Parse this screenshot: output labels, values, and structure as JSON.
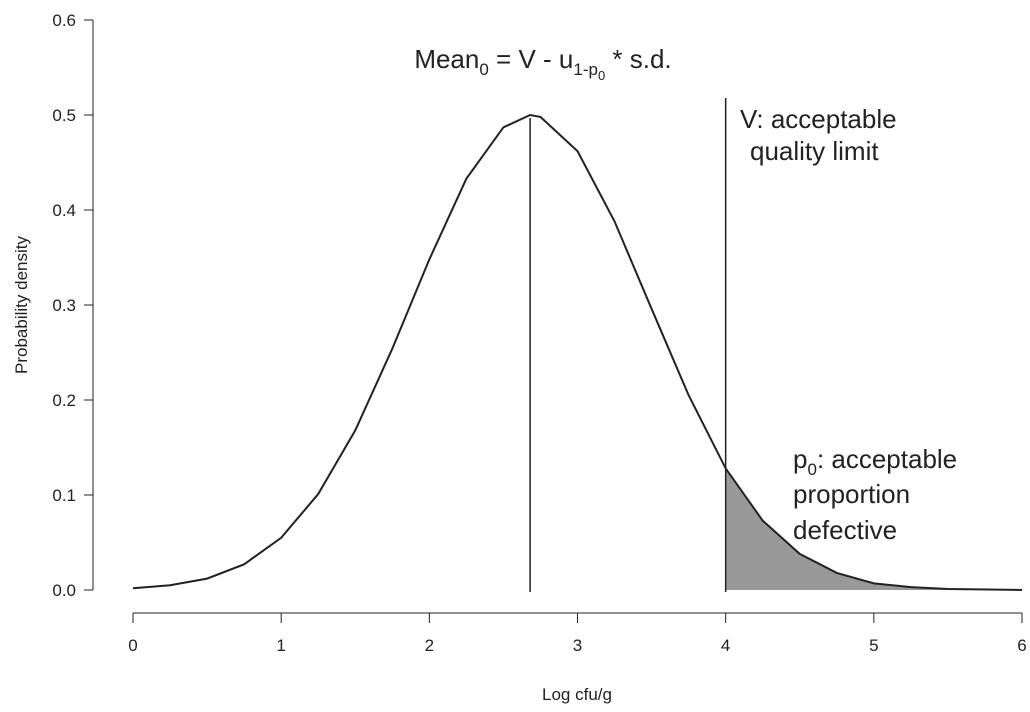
{
  "chart_data": {
    "type": "line",
    "title": [
      "Mean",
      "0",
      " = V - u",
      "1-p",
      "0",
      " * s.d."
    ],
    "xlabel": "Log cfu/g",
    "ylabel": "Probability density",
    "xlim": [
      0,
      6
    ],
    "xticks": [
      0,
      1,
      2,
      3,
      4,
      5,
      6
    ],
    "ylim": [
      0,
      0.6
    ],
    "yticks": [
      {
        "value": 0,
        "label": "0.0"
      },
      0.1,
      0.2,
      0.3,
      0.4,
      0.5,
      0.6
    ],
    "series": [
      {
        "color": "#222222",
        "x": [
          0,
          0.25,
          0.5,
          0.75,
          1,
          1.25,
          1.5,
          1.75,
          2,
          2.25,
          2.5,
          2.68,
          2.75,
          3,
          3.25,
          3.5,
          3.75,
          4,
          4.25,
          4.5,
          4.75,
          5,
          5.25,
          5.5,
          6
        ],
        "values": [
          0.0018,
          0.005,
          0.012,
          0.027,
          0.055,
          0.101,
          0.168,
          0.254,
          0.348,
          0.433,
          0.487,
          0.5,
          0.498,
          0.462,
          0.388,
          0.296,
          0.205,
          0.128,
          0.073,
          0.038,
          0.018,
          0.007,
          0.003,
          0.001,
          0
        ]
      }
    ],
    "shade_color": "#999999",
    "vlines": [
      2.68,
      4
    ],
    "annotations": [
      {
        "lines": [
          "V: acceptable",
          "quality limit"
        ]
      },
      {
        "lines": [
          "p",
          "0",
          ": acceptable",
          "proportion",
          "defective"
        ]
      }
    ]
  }
}
